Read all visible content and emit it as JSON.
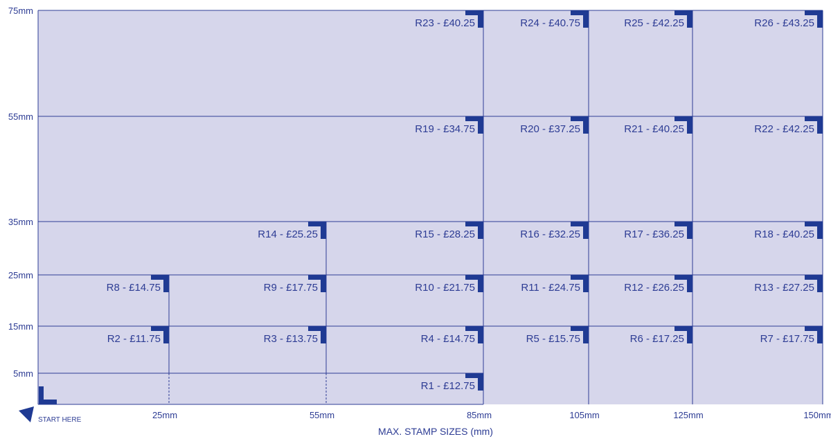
{
  "chart_data": {
    "type": "diagram",
    "xlabel": "MAX. STAMP SIZES (mm)",
    "start_label": "START HERE",
    "x_ticks": [
      "25mm",
      "55mm",
      "85mm",
      "105mm",
      "125mm",
      "150mm"
    ],
    "y_ticks": [
      "5mm",
      "15mm",
      "25mm",
      "35mm",
      "55mm",
      "75mm"
    ],
    "x_scale_mm": [
      0,
      25,
      55,
      85,
      105,
      125,
      150
    ],
    "y_scale_mm": [
      0,
      5,
      15,
      25,
      35,
      55,
      75
    ],
    "colors": {
      "fill": "#d6d6eb",
      "line": "#2d3c94",
      "marker": "#1f3a93"
    },
    "stamps": [
      {
        "label": "R1 - £12.75",
        "width_mm": 85,
        "height_mm": 5
      },
      {
        "label": "R2 - £11.75",
        "width_mm": 25,
        "height_mm": 15
      },
      {
        "label": "R3 - £13.75",
        "width_mm": 55,
        "height_mm": 15
      },
      {
        "label": "R4 - £14.75",
        "width_mm": 85,
        "height_mm": 15
      },
      {
        "label": "R5 - £15.75",
        "width_mm": 105,
        "height_mm": 15
      },
      {
        "label": "R6 - £17.25",
        "width_mm": 125,
        "height_mm": 15
      },
      {
        "label": "R7 - £17.75",
        "width_mm": 150,
        "height_mm": 15
      },
      {
        "label": "R8 - £14.75",
        "width_mm": 25,
        "height_mm": 25
      },
      {
        "label": "R9 - £17.75",
        "width_mm": 55,
        "height_mm": 25
      },
      {
        "label": "R10 - £21.75",
        "width_mm": 85,
        "height_mm": 25
      },
      {
        "label": "R11 - £24.75",
        "width_mm": 105,
        "height_mm": 25
      },
      {
        "label": "R12 - £26.25",
        "width_mm": 125,
        "height_mm": 25
      },
      {
        "label": "R13 - £27.25",
        "width_mm": 150,
        "height_mm": 25
      },
      {
        "label": "R14 - £25.25",
        "width_mm": 55,
        "height_mm": 35
      },
      {
        "label": "R15 - £28.25",
        "width_mm": 85,
        "height_mm": 35
      },
      {
        "label": "R16 - £32.25",
        "width_mm": 105,
        "height_mm": 35
      },
      {
        "label": "R17 - £36.25",
        "width_mm": 125,
        "height_mm": 35
      },
      {
        "label": "R18 - £40.25",
        "width_mm": 150,
        "height_mm": 35
      },
      {
        "label": "R19 - £34.75",
        "width_mm": 85,
        "height_mm": 55
      },
      {
        "label": "R20 - £37.25",
        "width_mm": 105,
        "height_mm": 55
      },
      {
        "label": "R21 - £40.25",
        "width_mm": 125,
        "height_mm": 55
      },
      {
        "label": "R22 - £42.25",
        "width_mm": 150,
        "height_mm": 55
      },
      {
        "label": "R23 - £40.25",
        "width_mm": 85,
        "height_mm": 75
      },
      {
        "label": "R24 - £40.75",
        "width_mm": 105,
        "height_mm": 75
      },
      {
        "label": "R25 -  £42.25",
        "width_mm": 125,
        "height_mm": 75
      },
      {
        "label": "R26 - £43.25",
        "width_mm": 150,
        "height_mm": 75
      }
    ]
  }
}
